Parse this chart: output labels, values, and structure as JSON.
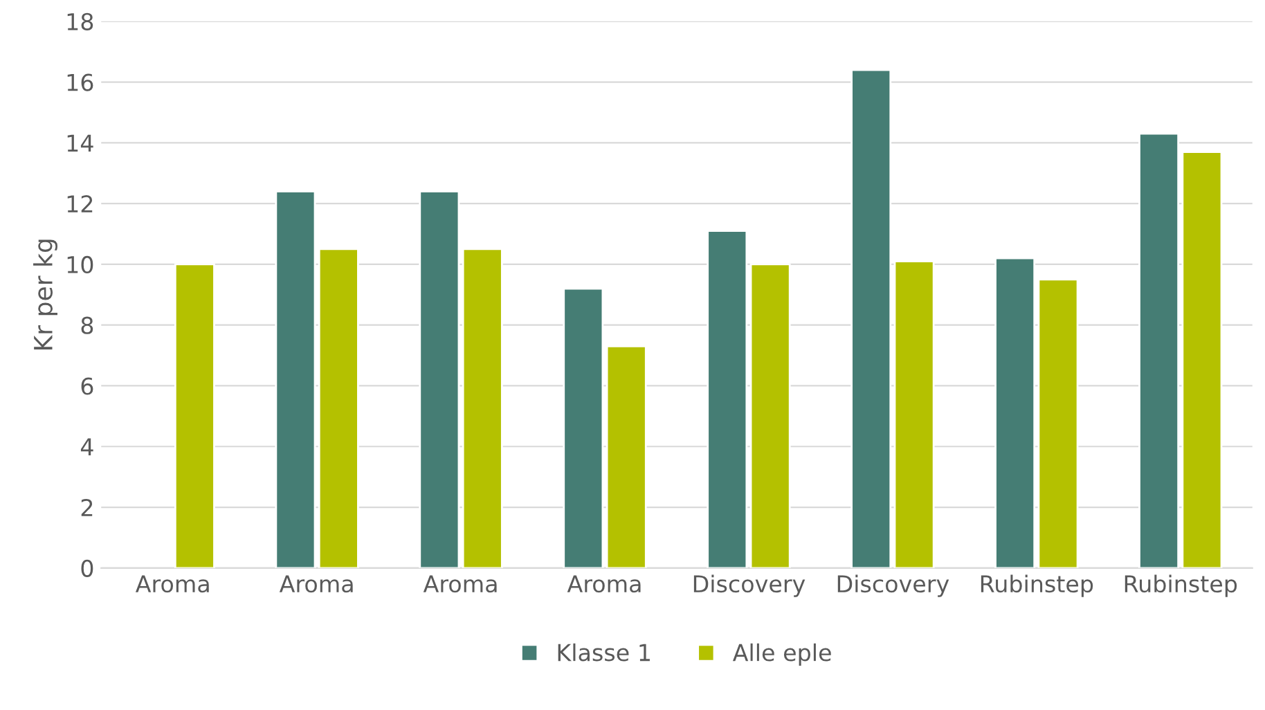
{
  "chart_data": {
    "type": "bar",
    "ylabel": "Kr per kg",
    "categories": [
      "Aroma",
      "Aroma",
      "Aroma",
      "Aroma",
      "Discovery",
      "Discovery",
      "Rubinstep",
      "Rubinstep"
    ],
    "series": [
      {
        "name": "Klasse 1",
        "color": "#457d74",
        "values": [
          null,
          12.4,
          12.4,
          9.2,
          11.1,
          16.4,
          10.2,
          14.3
        ]
      },
      {
        "name": "Alle eple",
        "color": "#b4c100",
        "values": [
          10.0,
          10.5,
          10.5,
          7.3,
          10.0,
          10.1,
          9.5,
          13.7
        ]
      }
    ],
    "ylim": [
      0,
      18
    ],
    "yticks": [
      0,
      2,
      4,
      6,
      8,
      10,
      12,
      14,
      16,
      18
    ],
    "grid": "y",
    "legend": "bottom"
  }
}
